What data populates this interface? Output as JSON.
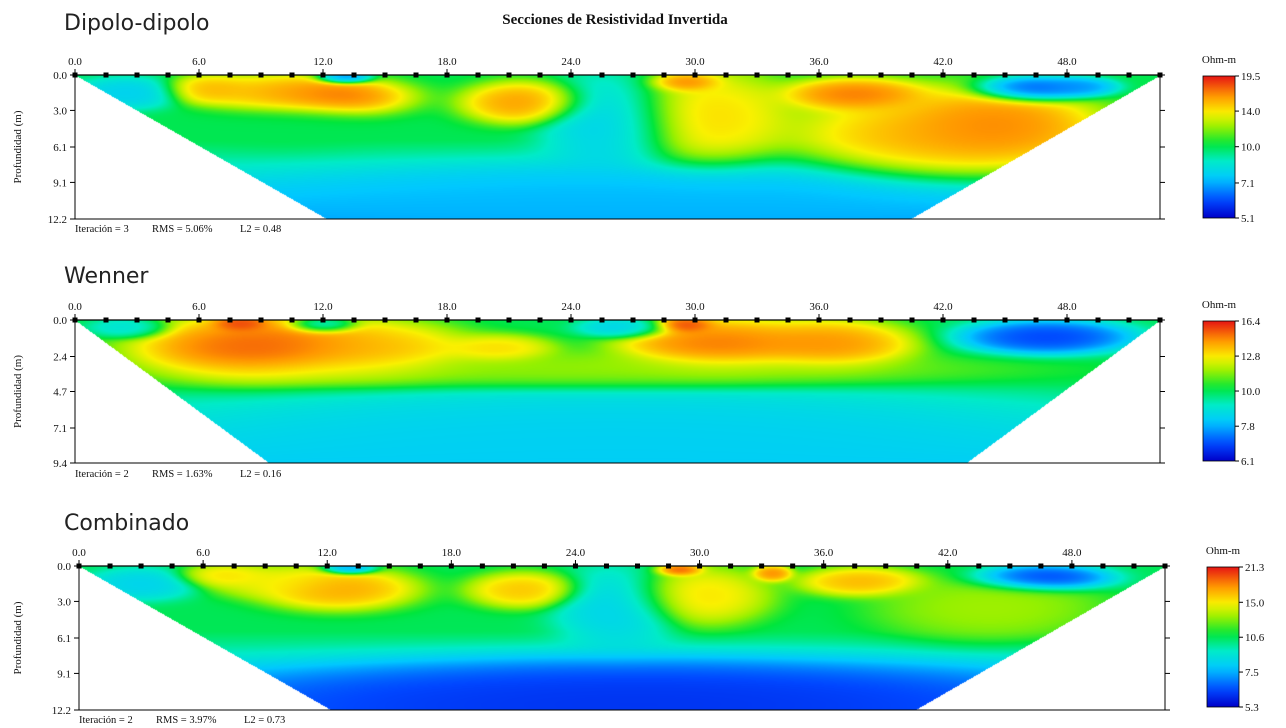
{
  "title": "Secciones de Resistividad Invertida",
  "chart_data": [
    {
      "type": "heatmap",
      "name": "Dipolo-dipolo",
      "ylabel": "Profundidad (m)",
      "x_ticks": [
        "0.0",
        "6.0",
        "12.0",
        "18.0",
        "24.0",
        "30.0",
        "36.0",
        "42.0",
        "48.0"
      ],
      "y_ticks": [
        "0.0",
        "3.0",
        "6.1",
        "9.1",
        "12.2"
      ],
      "xlim": [
        0,
        52.5
      ],
      "ylim": [
        12.2,
        0
      ],
      "stats": {
        "iter": "Iteración = 3",
        "rms": "RMS = 5.06%",
        "l2": "L2 = 0.48"
      },
      "colorbar": {
        "unit": "Ohm-m",
        "ticks": [
          "19.5",
          "14.0",
          "10.0",
          "7.1",
          "5.1"
        ],
        "min": 5.1,
        "max": 19.5
      },
      "section_bottom_x": [
        12.2,
        40.4
      ],
      "background_ohm": 10.0,
      "anomalies": [
        {
          "x": 12.0,
          "z": 1.8,
          "rx": 3.0,
          "rz": 1.2,
          "v": 18.5
        },
        {
          "x": 6.5,
          "z": 1.2,
          "rx": 1.6,
          "rz": 0.9,
          "v": 16.0
        },
        {
          "x": 9.5,
          "z": 1.6,
          "rx": 2.5,
          "rz": 1.2,
          "v": 15.5
        },
        {
          "x": 21.7,
          "z": 2.3,
          "rx": 2.2,
          "rz": 1.3,
          "v": 17.0
        },
        {
          "x": 30.5,
          "z": 3.5,
          "rx": 3.0,
          "rz": 3.0,
          "v": 15.0
        },
        {
          "x": 29.5,
          "z": 0.6,
          "rx": 1.2,
          "rz": 0.6,
          "v": 18.0
        },
        {
          "x": 37.7,
          "z": 1.6,
          "rx": 2.5,
          "rz": 1.0,
          "v": 18.0
        },
        {
          "x": 42.5,
          "z": 5.0,
          "rx": 5.5,
          "rz": 2.8,
          "v": 16.5
        },
        {
          "x": 44.5,
          "z": 4.2,
          "rx": 3.0,
          "rz": 2.0,
          "v": 17.5
        },
        {
          "x": 46.2,
          "z": 1.2,
          "rx": 2.0,
          "rz": 0.8,
          "v": 5.5
        },
        {
          "x": 48.5,
          "z": 1.0,
          "rx": 1.4,
          "rz": 0.6,
          "v": 6.5
        },
        {
          "x": 13.0,
          "z": 0.2,
          "rx": 1.0,
          "rz": 0.4,
          "v": 6.0
        },
        {
          "x": 2.5,
          "z": 1.5,
          "rx": 2.0,
          "rz": 1.0,
          "v": 7.5
        },
        {
          "x": 26.0,
          "z": 4.0,
          "rx": 2.5,
          "rz": 3.0,
          "v": 7.5
        },
        {
          "x": 10.0,
          "z": 4.0,
          "rx": 3.0,
          "rz": 1.5,
          "v": 10.0
        },
        {
          "x": 27.0,
          "z": 11.0,
          "rx": 14.0,
          "rz": 2.5,
          "v": 7.2
        }
      ]
    },
    {
      "type": "heatmap",
      "name": "Wenner",
      "ylabel": "Profundidad (m)",
      "x_ticks": [
        "0.0",
        "6.0",
        "12.0",
        "18.0",
        "24.0",
        "30.0",
        "36.0",
        "42.0",
        "48.0"
      ],
      "y_ticks": [
        "0.0",
        "2.4",
        "4.7",
        "7.1",
        "9.4"
      ],
      "xlim": [
        0,
        52.5
      ],
      "ylim": [
        9.4,
        0
      ],
      "stats": {
        "iter": "Iteración = 2",
        "rms": "RMS = 1.63%",
        "l2": "L2 = 0.16"
      },
      "colorbar": {
        "unit": "Ohm-m",
        "ticks": [
          "16.4",
          "12.8",
          "10.0",
          "7.8",
          "6.1"
        ],
        "min": 6.1,
        "max": 16.4
      },
      "section_bottom_x": [
        9.4,
        43.1
      ],
      "background_ohm": 10.0,
      "anomalies": [
        {
          "x": 9.0,
          "z": 1.8,
          "rx": 4.5,
          "rz": 1.6,
          "v": 16.0
        },
        {
          "x": 14.5,
          "z": 2.0,
          "rx": 3.5,
          "rz": 1.4,
          "v": 14.0
        },
        {
          "x": 20.5,
          "z": 1.9,
          "rx": 2.0,
          "rz": 0.7,
          "v": 13.5
        },
        {
          "x": 31.0,
          "z": 1.6,
          "rx": 3.5,
          "rz": 1.3,
          "v": 15.5
        },
        {
          "x": 36.5,
          "z": 1.6,
          "rx": 3.0,
          "rz": 1.2,
          "v": 15.0
        },
        {
          "x": 29.5,
          "z": 0.3,
          "rx": 1.0,
          "rz": 0.4,
          "v": 16.3
        },
        {
          "x": 8.0,
          "z": 0.2,
          "rx": 1.0,
          "rz": 0.4,
          "v": 16.3
        },
        {
          "x": 47.0,
          "z": 1.1,
          "rx": 3.0,
          "rz": 0.8,
          "v": 6.5
        },
        {
          "x": 2.5,
          "z": 0.5,
          "rx": 1.4,
          "rz": 0.5,
          "v": 8.5
        },
        {
          "x": 26.5,
          "z": 0.5,
          "rx": 1.6,
          "rz": 0.5,
          "v": 8.0
        },
        {
          "x": 12.0,
          "z": 0.3,
          "rx": 1.2,
          "rz": 0.4,
          "v": 8.0
        },
        {
          "x": 26.0,
          "z": 7.5,
          "rx": 16.0,
          "rz": 2.5,
          "v": 8.2
        },
        {
          "x": 25.0,
          "z": 3.3,
          "rx": 14.0,
          "rz": 0.9,
          "v": 11.8
        }
      ]
    },
    {
      "type": "heatmap",
      "name": "Combinado",
      "ylabel": "Profundidad (m)",
      "x_ticks": [
        "0.0",
        "6.0",
        "12.0",
        "18.0",
        "24.0",
        "30.0",
        "36.0",
        "42.0",
        "48.0"
      ],
      "y_ticks": [
        "0.0",
        "3.0",
        "6.1",
        "9.1",
        "12.2"
      ],
      "xlim": [
        0,
        52.5
      ],
      "ylim": [
        12.2,
        0
      ],
      "stats": {
        "iter": "Iteración = 2",
        "rms": "RMS = 3.97%",
        "l2": "L2 = 0.73"
      },
      "colorbar": {
        "unit": "Ohm-m",
        "ticks": [
          "21.3",
          "15.0",
          "10.6",
          "7.5",
          "5.3"
        ],
        "min": 5.3,
        "max": 21.3
      },
      "section_bottom_x": [
        12.2,
        40.4
      ],
      "background_ohm": 10.6,
      "anomalies": [
        {
          "x": 12.5,
          "z": 1.9,
          "rx": 2.8,
          "rz": 1.3,
          "v": 18.0
        },
        {
          "x": 7.0,
          "z": 0.8,
          "rx": 1.6,
          "rz": 0.7,
          "v": 16.0
        },
        {
          "x": 9.5,
          "z": 1.3,
          "rx": 2.5,
          "rz": 1.0,
          "v": 15.0
        },
        {
          "x": 21.5,
          "z": 2.0,
          "rx": 2.0,
          "rz": 1.1,
          "v": 17.0
        },
        {
          "x": 30.0,
          "z": 2.5,
          "rx": 2.5,
          "rz": 1.8,
          "v": 16.0
        },
        {
          "x": 29.0,
          "z": 0.3,
          "rx": 0.8,
          "rz": 0.4,
          "v": 21.0
        },
        {
          "x": 33.5,
          "z": 0.6,
          "rx": 0.7,
          "rz": 0.5,
          "v": 19.0
        },
        {
          "x": 37.8,
          "z": 1.3,
          "rx": 2.2,
          "rz": 0.9,
          "v": 17.5
        },
        {
          "x": 44.0,
          "z": 3.5,
          "rx": 4.0,
          "rz": 2.0,
          "v": 13.5
        },
        {
          "x": 46.5,
          "z": 1.0,
          "rx": 2.4,
          "rz": 0.8,
          "v": 5.6
        },
        {
          "x": 13.0,
          "z": 0.2,
          "rx": 1.0,
          "rz": 0.4,
          "v": 6.5
        },
        {
          "x": 3.0,
          "z": 1.5,
          "rx": 2.0,
          "rz": 1.0,
          "v": 8.0
        },
        {
          "x": 26.0,
          "z": 3.5,
          "rx": 2.2,
          "rz": 2.5,
          "v": 8.0
        },
        {
          "x": 27.0,
          "z": 11.0,
          "rx": 15.0,
          "rz": 2.3,
          "v": 5.8
        }
      ]
    }
  ]
}
